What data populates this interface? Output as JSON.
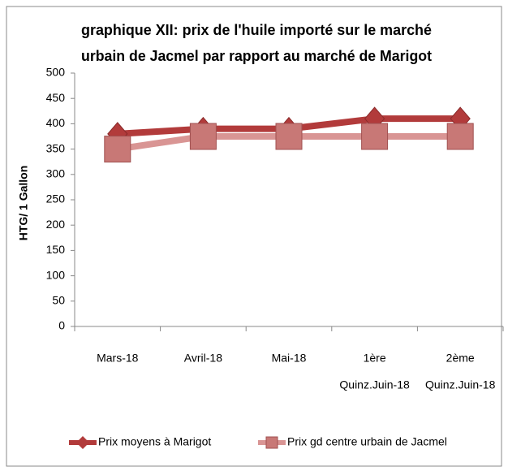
{
  "chart_data": {
    "type": "line",
    "title": [
      "graphique XII: prix de l'huile importé sur le marché",
      "urbain de Jacmel par rapport au marché de Marigot"
    ],
    "y_label": "HTG/ 1 Gallon",
    "categories": [
      [
        "Mars-18"
      ],
      [
        "Avril-18"
      ],
      [
        "Mai-18"
      ],
      [
        "1ère",
        "Quinz.Juin-18"
      ],
      [
        "2ème",
        "Quinz.Juin-18"
      ]
    ],
    "series": [
      {
        "name": "Prix moyens à Marigot",
        "color": "#b23b3b",
        "marker": "diamond",
        "values": [
          380,
          390,
          390,
          410,
          410
        ]
      },
      {
        "name": "Prix gd centre urbain de Jacmel",
        "color": "#d99594",
        "marker": "square",
        "values": [
          350,
          375,
          375,
          375,
          375
        ]
      }
    ],
    "ylim": [
      0,
      500
    ],
    "yticks": [
      0,
      50,
      100,
      150,
      200,
      250,
      300,
      350,
      400,
      450,
      500
    ],
    "grid": false,
    "legend": "bottom"
  }
}
